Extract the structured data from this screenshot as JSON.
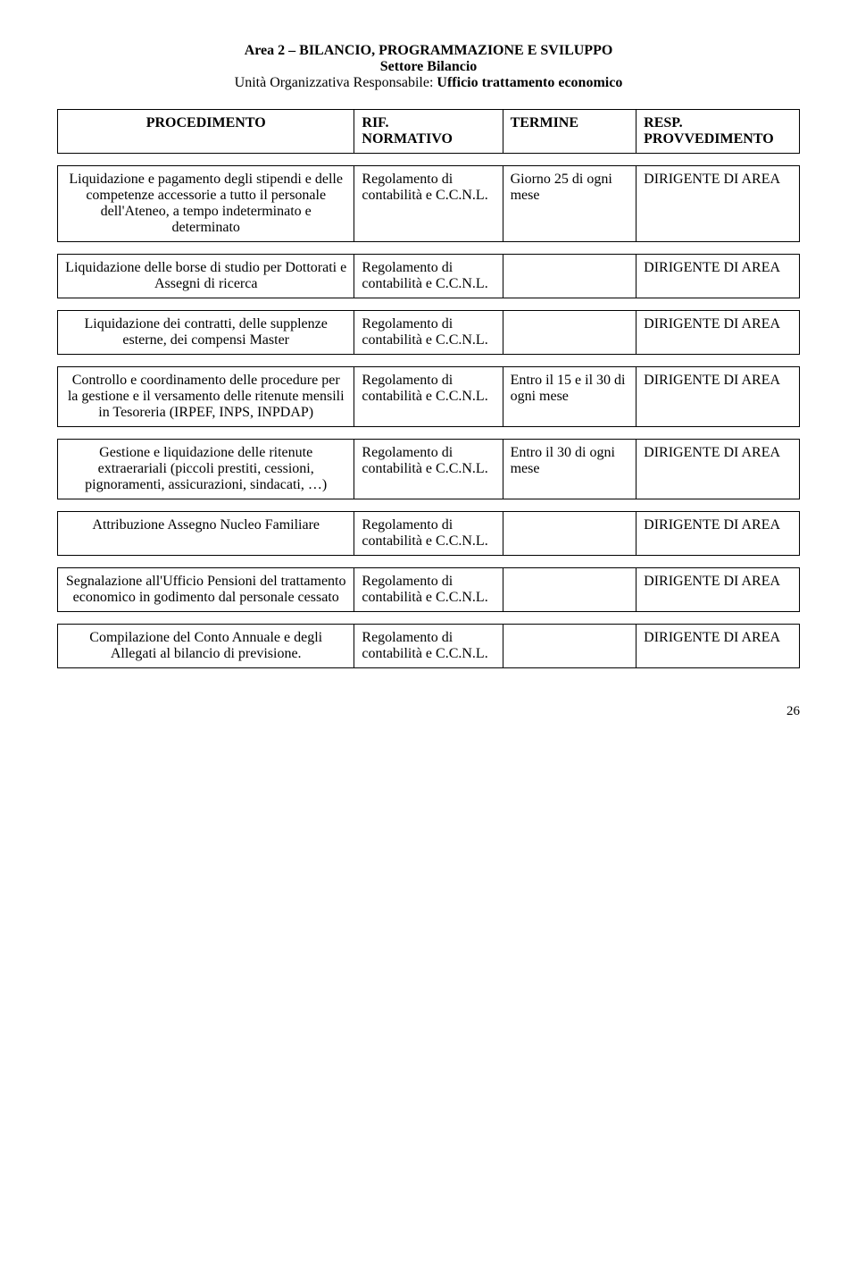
{
  "header": {
    "line1": "Area 2 – BILANCIO, PROGRAMMAZIONE E SVILUPPO",
    "line2": "Settore Bilancio",
    "line3_label": "Unità Organizzativa Responsabile:",
    "line3_value": "Ufficio trattamento economico"
  },
  "colhdr": {
    "c1": "PROCEDIMENTO",
    "c2a": "RIF.",
    "c2b": "NORMATIVO",
    "c3": "TERMINE",
    "c4a": "RESP.",
    "c4b": "PROVVEDIMENTO"
  },
  "rif_default": "Regolamento di contabilità e C.C.N.L.",
  "resp_default": "DIRIGENTE DI AREA",
  "rows": [
    {
      "proc": "Liquidazione e pagamento degli stipendi e delle competenze accessorie a tutto il personale dell'Ateneo, a tempo indeterminato e determinato",
      "termine": "Giorno 25 di ogni mese"
    },
    {
      "proc": "Liquidazione delle borse di studio per Dottorati e Assegni di ricerca",
      "termine": ""
    },
    {
      "proc": "Liquidazione dei contratti, delle supplenze esterne, dei compensi Master",
      "termine": ""
    },
    {
      "proc": "Controllo e coordinamento delle procedure per la gestione e il versamento delle ritenute mensili in Tesoreria (IRPEF, INPS, INPDAP)",
      "termine": "Entro il 15 e il 30 di ogni mese"
    },
    {
      "proc": "Gestione e liquidazione delle ritenute extraerariali (piccoli prestiti, cessioni, pignoramenti, assicurazioni, sindacati, …)",
      "termine": "Entro il 30 di ogni mese"
    },
    {
      "proc": "Attribuzione Assegno Nucleo Familiare",
      "termine": ""
    },
    {
      "proc": "Segnalazione all'Ufficio Pensioni del trattamento economico in godimento dal personale cessato",
      "termine": ""
    },
    {
      "proc": "Compilazione del Conto Annuale e degli Allegati al bilancio di previsione.",
      "termine": ""
    }
  ],
  "pagenum": "26"
}
